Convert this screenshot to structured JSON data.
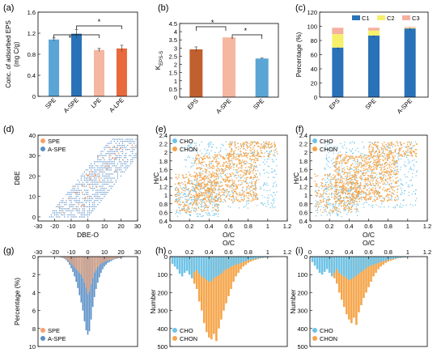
{
  "colors": {
    "spe": "#5aa5d6",
    "aspe_blue": "#2a72b8",
    "lpe": "#f5b7a0",
    "alpe": "#e8693c",
    "eps_brown": "#c0602e",
    "cho": "#6ec3e8",
    "chon": "#f5a54a",
    "c1": "#2a72b8",
    "c2": "#f6f06a",
    "c3": "#f5b0a0",
    "orange_pt": "#f5a06e",
    "blue_pt": "#5a8fc6"
  },
  "panels": [
    {
      "id": "a",
      "label": "(a)"
    },
    {
      "id": "b",
      "label": "(b)"
    },
    {
      "id": "c",
      "label": "(c)"
    },
    {
      "id": "d",
      "label": "(d)"
    },
    {
      "id": "e",
      "label": "(e)"
    },
    {
      "id": "f",
      "label": "(f)"
    },
    {
      "id": "g",
      "label": "(g)"
    },
    {
      "id": "h",
      "label": "(h)"
    },
    {
      "id": "i",
      "label": "(i)"
    }
  ],
  "chart_data": [
    {
      "id": "a",
      "type": "bar",
      "ylabel": "Conc. of adsorbed EPS\n(mg C/g)",
      "categories": [
        "SPE",
        "A-SPE",
        "LPE",
        "A-LPE"
      ],
      "values": [
        1.08,
        1.19,
        0.88,
        0.91
      ],
      "errors": [
        0.03,
        0.08,
        0.03,
        0.06
      ],
      "ylim": [
        0,
        1.6
      ],
      "yticks": [
        0,
        0.4,
        0.8,
        1.2,
        1.6
      ],
      "sig": [
        "*",
        "*"
      ]
    },
    {
      "id": "b",
      "type": "bar",
      "ylabel": "K_EPS-S",
      "categories": [
        "EPS",
        "A-SPE",
        "SPE"
      ],
      "values": [
        2.92,
        3.65,
        2.36
      ],
      "errors": [
        0.15,
        0.0,
        0.03
      ],
      "ylim": [
        0,
        4.5
      ],
      "yticks": [
        0,
        0.5,
        1.0,
        1.5,
        2.0,
        2.5,
        3.0,
        3.5,
        4.0,
        4.5
      ],
      "sig": [
        "*",
        "*"
      ]
    },
    {
      "id": "c",
      "type": "bar",
      "ylabel": "Percentage (%)",
      "categories": [
        "EPS",
        "SPE",
        "A-SPE"
      ],
      "series": [
        {
          "name": "C1",
          "values": [
            70,
            87,
            97
          ]
        },
        {
          "name": "C2",
          "values": [
            19,
            7,
            1
          ]
        },
        {
          "name": "C3",
          "values": [
            9,
            4,
            1
          ]
        }
      ],
      "ylim": [
        0,
        120
      ],
      "yticks": [
        0,
        20,
        40,
        60,
        80,
        100,
        120
      ]
    },
    {
      "id": "d",
      "type": "scatter",
      "xlabel": "DBE-O",
      "ylabel": "DBE",
      "xlim": [
        -30,
        30
      ],
      "ylim": [
        -2,
        40
      ],
      "xticks": [
        -30,
        -20,
        -10,
        0,
        10,
        20,
        30
      ],
      "yticks": [
        0,
        10,
        20,
        30,
        40
      ],
      "series": [
        {
          "name": "SPE"
        },
        {
          "name": "A-SPE"
        }
      ]
    },
    {
      "id": "e",
      "type": "scatter",
      "xlabel": "O/C",
      "ylabel": "H/C",
      "xlim": [
        0,
        1.2
      ],
      "ylim": [
        0.4,
        2.4
      ],
      "xticks": [
        0,
        0.2,
        0.4,
        0.6,
        0.8,
        1.0,
        1.2
      ],
      "yticks": [
        0.4,
        0.6,
        0.8,
        1.0,
        1.2,
        1.4,
        1.6,
        1.8,
        2.0,
        2.2,
        2.4
      ],
      "series": [
        {
          "name": "CHO"
        },
        {
          "name": "CHON"
        }
      ]
    },
    {
      "id": "f",
      "type": "scatter",
      "xlabel": "O/C",
      "ylabel": "H/C",
      "xlim": [
        0,
        1.2
      ],
      "ylim": [
        0.4,
        2.4
      ],
      "xticks": [
        0,
        0.2,
        0.4,
        0.6,
        0.8,
        1.0,
        1.2
      ],
      "yticks": [
        0.4,
        0.6,
        0.8,
        1.0,
        1.2,
        1.4,
        1.6,
        1.8,
        2.0,
        2.2,
        2.4
      ],
      "series": [
        {
          "name": "CHO"
        },
        {
          "name": "CHON"
        }
      ]
    },
    {
      "id": "g",
      "type": "bar",
      "xlabel": "DBE-O",
      "ylabel": "Percentage (%)",
      "xlim": [
        -30,
        30
      ],
      "ylim": [
        0,
        10
      ],
      "xticks": [
        -30,
        -20,
        -10,
        0,
        10,
        20,
        30
      ],
      "yticks": [
        0,
        2,
        4,
        6,
        8,
        10
      ],
      "x": [
        -17,
        -16,
        -15,
        -14,
        -13,
        -12,
        -11,
        -10,
        -9,
        -8,
        -7,
        -6,
        -5,
        -4,
        -3,
        -2,
        -1,
        0,
        1,
        2,
        3,
        4,
        5,
        6,
        7,
        8,
        9,
        10,
        11,
        12,
        13,
        14,
        15,
        16,
        17,
        18,
        19,
        20,
        21,
        22
      ],
      "series": [
        {
          "name": "SPE",
          "values": [
            0.05,
            0.08,
            0.1,
            0.2,
            0.3,
            0.4,
            0.6,
            0.8,
            1.0,
            1.2,
            1.4,
            1.6,
            1.8,
            2.0,
            2.4,
            2.9,
            3.5,
            4.2,
            3.9,
            3.1,
            2.4,
            1.8,
            1.5,
            1.2,
            1.0,
            0.8,
            0.7,
            0.6,
            0.5,
            0.45,
            0.4,
            0.35,
            0.3,
            0.25,
            0.2,
            0.15,
            0.1,
            0.1,
            0.05,
            0.05
          ]
        },
        {
          "name": "A-SPE",
          "values": [
            0.05,
            0.1,
            0.15,
            0.25,
            0.4,
            0.6,
            0.9,
            1.3,
            1.7,
            2.2,
            2.8,
            3.5,
            4.3,
            5.1,
            6.0,
            7.2,
            8.2,
            8.7,
            8.3,
            7.0,
            5.6,
            4.5,
            3.6,
            2.9,
            2.3,
            1.8,
            1.4,
            1.1,
            0.9,
            0.7,
            0.6,
            0.5,
            0.4,
            0.3,
            0.25,
            0.2,
            0.15,
            0.1,
            0.08,
            0.05
          ]
        }
      ]
    },
    {
      "id": "h",
      "type": "bar",
      "xlabel": "O/C",
      "ylabel": "Number",
      "xlim": [
        0,
        1.2
      ],
      "ylim": [
        0,
        500
      ],
      "xticks": [
        0,
        0.2,
        0.4,
        0.6,
        0.8,
        1.0,
        1.2
      ],
      "yticks": [
        0,
        100,
        200,
        300,
        400,
        500
      ],
      "x": [
        0.025,
        0.05,
        0.075,
        0.1,
        0.125,
        0.15,
        0.175,
        0.2,
        0.225,
        0.25,
        0.275,
        0.3,
        0.325,
        0.35,
        0.375,
        0.4,
        0.425,
        0.45,
        0.475,
        0.5,
        0.525,
        0.55,
        0.575,
        0.6,
        0.625,
        0.65,
        0.675,
        0.7,
        0.725,
        0.75,
        0.775,
        0.8,
        0.825,
        0.85,
        0.875,
        0.9,
        0.925,
        0.95,
        0.975,
        1.0,
        1.025,
        1.05,
        1.075,
        1.1
      ],
      "series": [
        {
          "name": "CHO",
          "values": [
            40,
            55,
            70,
            95,
            110,
            90,
            80,
            100,
            120,
            85,
            75,
            95,
            110,
            120,
            130,
            140,
            135,
            120,
            110,
            105,
            95,
            80,
            70,
            65,
            55,
            50,
            45,
            40,
            35,
            30,
            25,
            20,
            18,
            15,
            12,
            10,
            8,
            6,
            5,
            4,
            3,
            2,
            2,
            1
          ]
        },
        {
          "name": "CHON",
          "values": [
            0,
            0,
            0,
            5,
            15,
            20,
            25,
            60,
            120,
            150,
            180,
            250,
            300,
            370,
            420,
            450,
            460,
            430,
            470,
            400,
            350,
            300,
            260,
            220,
            180,
            140,
            110,
            90,
            70,
            55,
            45,
            35,
            28,
            22,
            18,
            14,
            10,
            8,
            6,
            4,
            3,
            2,
            1,
            1
          ]
        }
      ]
    },
    {
      "id": "i",
      "type": "bar",
      "xlabel": "O/C",
      "ylabel": "Number",
      "xlim": [
        0,
        1.2
      ],
      "ylim": [
        0,
        500
      ],
      "xticks": [
        0,
        0.2,
        0.4,
        0.6,
        0.8,
        1.0,
        1.2
      ],
      "yticks": [
        0,
        100,
        200,
        300,
        400,
        500
      ],
      "x": [
        0.025,
        0.05,
        0.075,
        0.1,
        0.125,
        0.15,
        0.175,
        0.2,
        0.225,
        0.25,
        0.275,
        0.3,
        0.325,
        0.35,
        0.375,
        0.4,
        0.425,
        0.45,
        0.475,
        0.5,
        0.525,
        0.55,
        0.575,
        0.6,
        0.625,
        0.65,
        0.675,
        0.7,
        0.725,
        0.75,
        0.775,
        0.8,
        0.825,
        0.85,
        0.875,
        0.9,
        0.925,
        0.95,
        0.975,
        1.0,
        1.025,
        1.05,
        1.075,
        1.1
      ],
      "series": [
        {
          "name": "CHO",
          "values": [
            30,
            50,
            70,
            90,
            100,
            85,
            70,
            90,
            110,
            90,
            70,
            90,
            100,
            110,
            120,
            130,
            125,
            115,
            105,
            95,
            85,
            75,
            65,
            55,
            50,
            45,
            40,
            35,
            30,
            25,
            22,
            18,
            15,
            12,
            10,
            8,
            6,
            5,
            4,
            3,
            2,
            2,
            1,
            1
          ]
        },
        {
          "name": "CHON",
          "values": [
            0,
            0,
            0,
            5,
            10,
            20,
            25,
            50,
            90,
            120,
            150,
            200,
            240,
            280,
            320,
            350,
            370,
            340,
            380,
            310,
            270,
            230,
            200,
            170,
            140,
            110,
            90,
            70,
            55,
            45,
            35,
            28,
            22,
            18,
            14,
            10,
            8,
            6,
            5,
            3,
            2,
            2,
            1,
            1
          ]
        }
      ]
    }
  ]
}
